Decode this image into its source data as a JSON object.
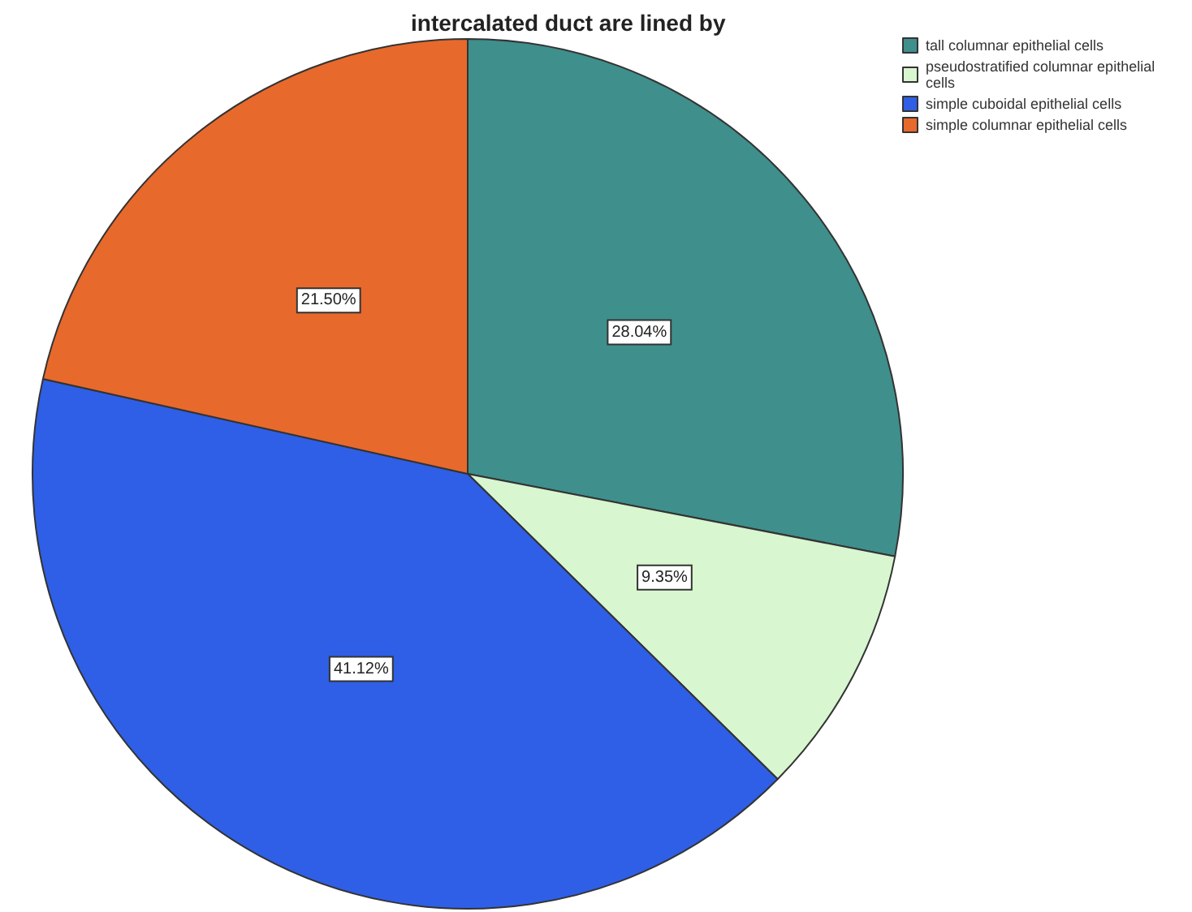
{
  "chart_data": {
    "type": "pie",
    "title": "intercalated duct are lined by",
    "categories": [
      "tall columnar epithelial cells",
      "pseudostratified columnar epithelial cells",
      "simple cuboidal epithelial cells",
      "simple columnar epithelial cells"
    ],
    "values": [
      28.04,
      9.35,
      41.12,
      21.5
    ],
    "value_labels": [
      "28.04%",
      "9.35%",
      "41.12%",
      "21.50%"
    ],
    "colors": [
      "#3f8f8c",
      "#d8f6cf",
      "#2f5fe6",
      "#e8692c"
    ],
    "legend": "top right"
  }
}
